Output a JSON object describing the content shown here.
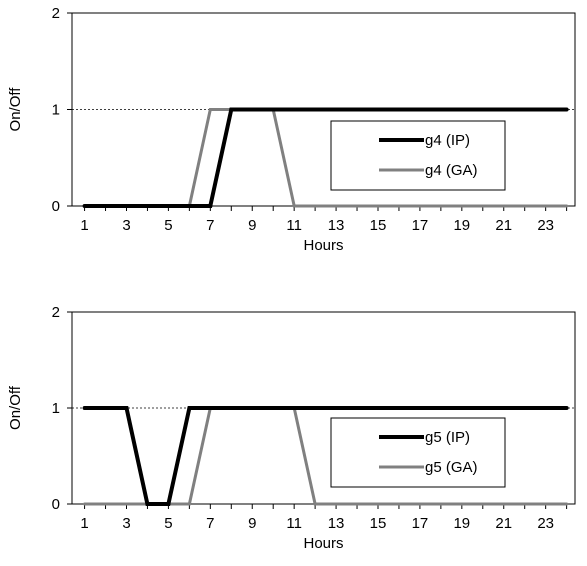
{
  "chart_data": [
    {
      "type": "line",
      "xlabel": "Hours",
      "ylabel": "On/Off",
      "x": [
        1,
        2,
        3,
        4,
        5,
        6,
        7,
        8,
        9,
        10,
        11,
        12,
        13,
        14,
        15,
        16,
        17,
        18,
        19,
        20,
        21,
        22,
        23,
        24
      ],
      "xticks": [
        1,
        3,
        5,
        7,
        9,
        11,
        13,
        15,
        17,
        19,
        21,
        23
      ],
      "yticks": [
        0,
        1,
        2
      ],
      "ylim": [
        0,
        2
      ],
      "xlim": [
        0.4,
        24.4
      ],
      "reference_line": 1,
      "legend_position": "center-right",
      "series": [
        {
          "name": "g4 (IP)",
          "color": "#000000",
          "values": [
            0,
            0,
            0,
            0,
            0,
            0,
            0,
            1,
            1,
            1,
            1,
            1,
            1,
            1,
            1,
            1,
            1,
            1,
            1,
            1,
            1,
            1,
            1,
            1
          ]
        },
        {
          "name": "g4 (GA)",
          "color": "#808080",
          "values": [
            0,
            0,
            0,
            0,
            0,
            0,
            1,
            1,
            1,
            1,
            0,
            0,
            0,
            0,
            0,
            0,
            0,
            0,
            0,
            0,
            0,
            0,
            0,
            0
          ]
        }
      ]
    },
    {
      "type": "line",
      "xlabel": "Hours",
      "ylabel": "On/Off",
      "x": [
        1,
        2,
        3,
        4,
        5,
        6,
        7,
        8,
        9,
        10,
        11,
        12,
        13,
        14,
        15,
        16,
        17,
        18,
        19,
        20,
        21,
        22,
        23,
        24
      ],
      "xticks": [
        1,
        3,
        5,
        7,
        9,
        11,
        13,
        15,
        17,
        19,
        21,
        23
      ],
      "yticks": [
        0,
        1,
        2
      ],
      "ylim": [
        0,
        2
      ],
      "xlim": [
        0.4,
        24.4
      ],
      "reference_line": 1,
      "legend_position": "bottom-right",
      "series": [
        {
          "name": "g5 (IP)",
          "color": "#000000",
          "values": [
            1,
            1,
            1,
            0,
            0,
            1,
            1,
            1,
            1,
            1,
            1,
            1,
            1,
            1,
            1,
            1,
            1,
            1,
            1,
            1,
            1,
            1,
            1,
            1
          ]
        },
        {
          "name": "g5 (GA)",
          "color": "#808080",
          "values": [
            0,
            0,
            0,
            0,
            0,
            0,
            1,
            1,
            1,
            1,
            1,
            0,
            0,
            0,
            0,
            0,
            0,
            0,
            0,
            0,
            0,
            0,
            0,
            0
          ]
        }
      ]
    }
  ]
}
